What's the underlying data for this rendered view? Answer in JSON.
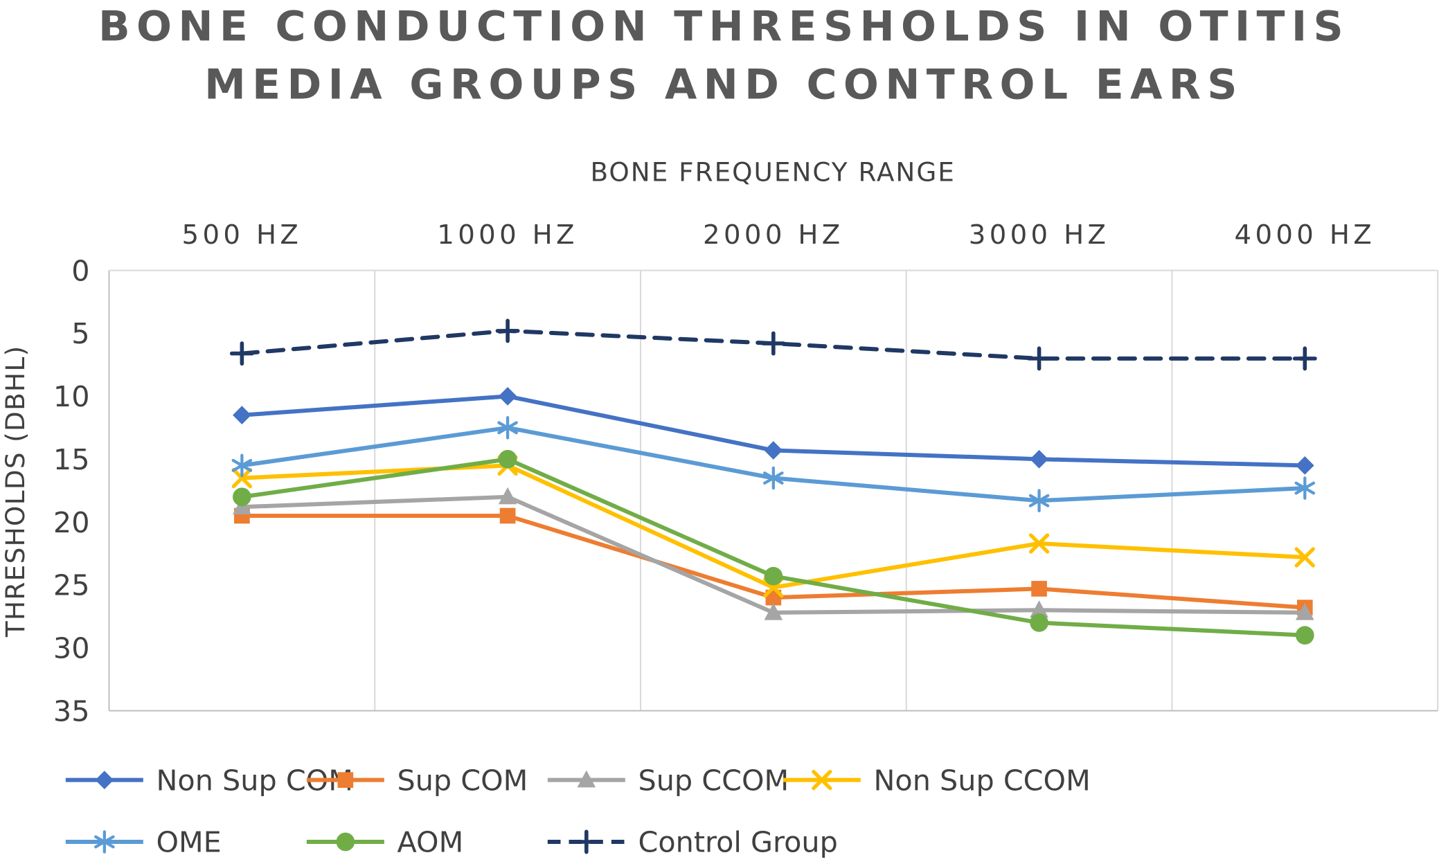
{
  "title_line1": "BONE CONDUCTION THRESHOLDS IN OTITIS",
  "title_line2": "MEDIA GROUPS AND CONTROL EARS",
  "chart_data": {
    "type": "line",
    "title": "BONE CONDUCTION THRESHOLDS IN OTITIS MEDIA GROUPS AND CONTROL EARS",
    "x_axis_title": "BONE FREQUENCY RANGE",
    "y_axis_title": "THRESHOLDS (DBHL)",
    "categories": [
      "500 HZ",
      "1000 HZ",
      "2000 HZ",
      "3000 HZ",
      "4000 HZ"
    ],
    "y_ticks": [
      0,
      5,
      10,
      15,
      20,
      25,
      30,
      35
    ],
    "ylim": [
      0,
      35
    ],
    "y_axis_inverted": true,
    "grid": "vertical-only",
    "legend_position": "bottom",
    "series": [
      {
        "name": "Non Sup COM",
        "color": "#4472C4",
        "marker": "diamond",
        "dash": "solid",
        "values": [
          11.5,
          10.0,
          14.3,
          15.0,
          15.5
        ]
      },
      {
        "name": "Sup COM",
        "color": "#ED7D31",
        "marker": "square",
        "dash": "solid",
        "values": [
          19.5,
          19.5,
          26.0,
          25.3,
          26.8
        ]
      },
      {
        "name": "Sup CCOM",
        "color": "#A5A5A5",
        "marker": "triangle",
        "dash": "solid",
        "values": [
          18.8,
          18.0,
          27.2,
          27.0,
          27.2
        ]
      },
      {
        "name": "Non Sup CCOM",
        "color": "#FFC000",
        "marker": "x",
        "dash": "solid",
        "values": [
          16.5,
          15.5,
          25.2,
          21.7,
          22.8
        ]
      },
      {
        "name": "OME",
        "color": "#5B9BD5",
        "marker": "asterisk",
        "dash": "solid",
        "values": [
          15.5,
          12.5,
          16.5,
          18.3,
          17.3
        ]
      },
      {
        "name": "AOM",
        "color": "#70AD47",
        "marker": "circle",
        "dash": "solid",
        "values": [
          18.0,
          15.0,
          24.3,
          28.0,
          29.0
        ]
      },
      {
        "name": "Control Group",
        "color": "#203864",
        "marker": "plus",
        "dash": "dashed",
        "values": [
          6.6,
          4.8,
          5.8,
          7.0,
          7.0
        ]
      }
    ]
  }
}
